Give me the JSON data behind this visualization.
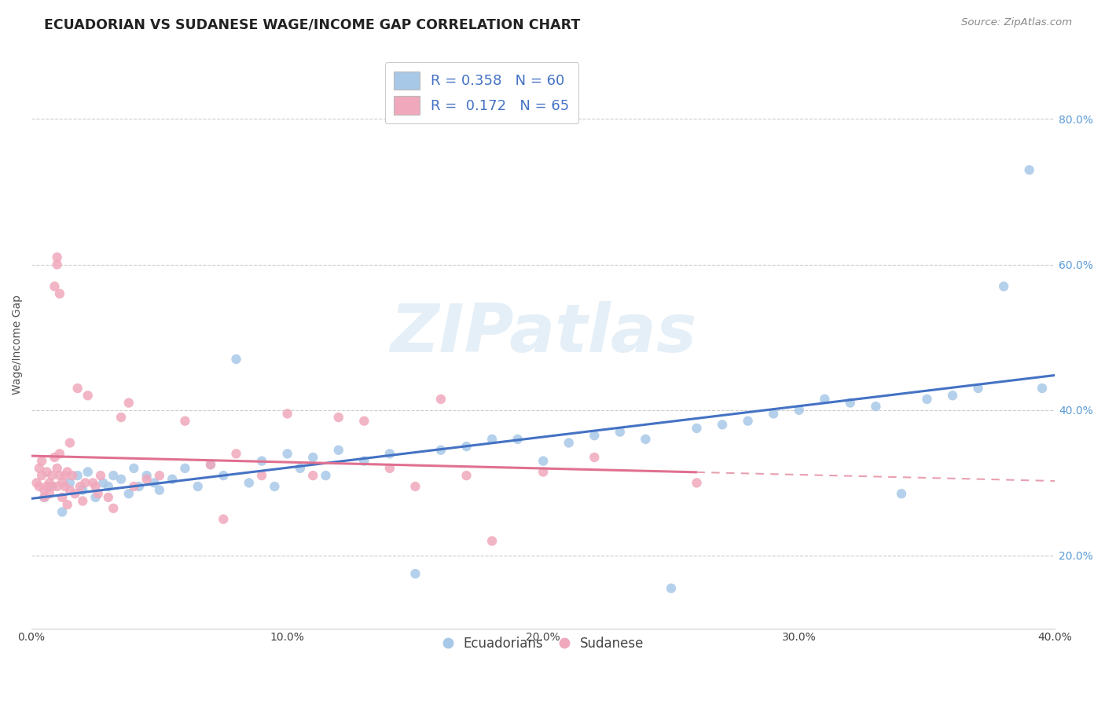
{
  "title": "ECUADORIAN VS SUDANESE WAGE/INCOME GAP CORRELATION CHART",
  "source_text": "Source: ZipAtlas.com",
  "ylabel": "Wage/Income Gap",
  "xlim": [
    0.0,
    0.4
  ],
  "ylim": [
    0.1,
    0.88
  ],
  "xtick_labels": [
    "0.0%",
    "10.0%",
    "20.0%",
    "30.0%",
    "40.0%"
  ],
  "xtick_values": [
    0.0,
    0.1,
    0.2,
    0.3,
    0.4
  ],
  "ytick_labels": [
    "20.0%",
    "40.0%",
    "60.0%",
    "80.0%"
  ],
  "ytick_values": [
    0.2,
    0.4,
    0.6,
    0.8
  ],
  "color_blue": "#a8c8e8",
  "color_pink": "#f0a8bc",
  "line_blue": "#4472c4",
  "line_pink": "#e07090",
  "line_pink_dash": "#e8a0b0",
  "watermark": "ZIPatlas",
  "blue_scatter_x": [
    0.005,
    0.008,
    0.012,
    0.015,
    0.018,
    0.02,
    0.022,
    0.025,
    0.028,
    0.03,
    0.032,
    0.035,
    0.038,
    0.04,
    0.042,
    0.045,
    0.048,
    0.05,
    0.055,
    0.06,
    0.065,
    0.07,
    0.075,
    0.08,
    0.085,
    0.09,
    0.095,
    0.1,
    0.105,
    0.11,
    0.115,
    0.12,
    0.13,
    0.14,
    0.15,
    0.16,
    0.17,
    0.18,
    0.19,
    0.2,
    0.21,
    0.22,
    0.23,
    0.24,
    0.25,
    0.26,
    0.27,
    0.28,
    0.29,
    0.3,
    0.31,
    0.32,
    0.33,
    0.34,
    0.35,
    0.36,
    0.37,
    0.38,
    0.39,
    0.395
  ],
  "blue_scatter_y": [
    0.28,
    0.295,
    0.26,
    0.3,
    0.31,
    0.29,
    0.315,
    0.28,
    0.3,
    0.295,
    0.31,
    0.305,
    0.285,
    0.32,
    0.295,
    0.31,
    0.3,
    0.29,
    0.305,
    0.32,
    0.295,
    0.325,
    0.31,
    0.47,
    0.3,
    0.33,
    0.295,
    0.34,
    0.32,
    0.335,
    0.31,
    0.345,
    0.33,
    0.34,
    0.175,
    0.345,
    0.35,
    0.36,
    0.36,
    0.33,
    0.355,
    0.365,
    0.37,
    0.36,
    0.155,
    0.375,
    0.38,
    0.385,
    0.395,
    0.4,
    0.415,
    0.41,
    0.405,
    0.285,
    0.415,
    0.42,
    0.43,
    0.57,
    0.73,
    0.43
  ],
  "pink_scatter_x": [
    0.002,
    0.003,
    0.003,
    0.004,
    0.004,
    0.005,
    0.005,
    0.006,
    0.006,
    0.007,
    0.007,
    0.008,
    0.008,
    0.009,
    0.009,
    0.01,
    0.01,
    0.01,
    0.01,
    0.011,
    0.011,
    0.011,
    0.012,
    0.012,
    0.013,
    0.013,
    0.014,
    0.014,
    0.015,
    0.015,
    0.016,
    0.017,
    0.018,
    0.019,
    0.02,
    0.021,
    0.022,
    0.024,
    0.025,
    0.026,
    0.027,
    0.03,
    0.032,
    0.035,
    0.038,
    0.04,
    0.045,
    0.05,
    0.06,
    0.07,
    0.075,
    0.08,
    0.09,
    0.1,
    0.11,
    0.12,
    0.13,
    0.14,
    0.15,
    0.16,
    0.17,
    0.18,
    0.2,
    0.22,
    0.26
  ],
  "pink_scatter_y": [
    0.3,
    0.32,
    0.295,
    0.33,
    0.31,
    0.29,
    0.28,
    0.315,
    0.295,
    0.3,
    0.285,
    0.31,
    0.295,
    0.335,
    0.57,
    0.6,
    0.61,
    0.32,
    0.295,
    0.31,
    0.34,
    0.56,
    0.3,
    0.28,
    0.295,
    0.31,
    0.27,
    0.315,
    0.29,
    0.355,
    0.31,
    0.285,
    0.43,
    0.295,
    0.275,
    0.3,
    0.42,
    0.3,
    0.295,
    0.285,
    0.31,
    0.28,
    0.265,
    0.39,
    0.41,
    0.295,
    0.305,
    0.31,
    0.385,
    0.325,
    0.25,
    0.34,
    0.31,
    0.395,
    0.31,
    0.39,
    0.385,
    0.32,
    0.295,
    0.415,
    0.31,
    0.22,
    0.315,
    0.335,
    0.3
  ]
}
